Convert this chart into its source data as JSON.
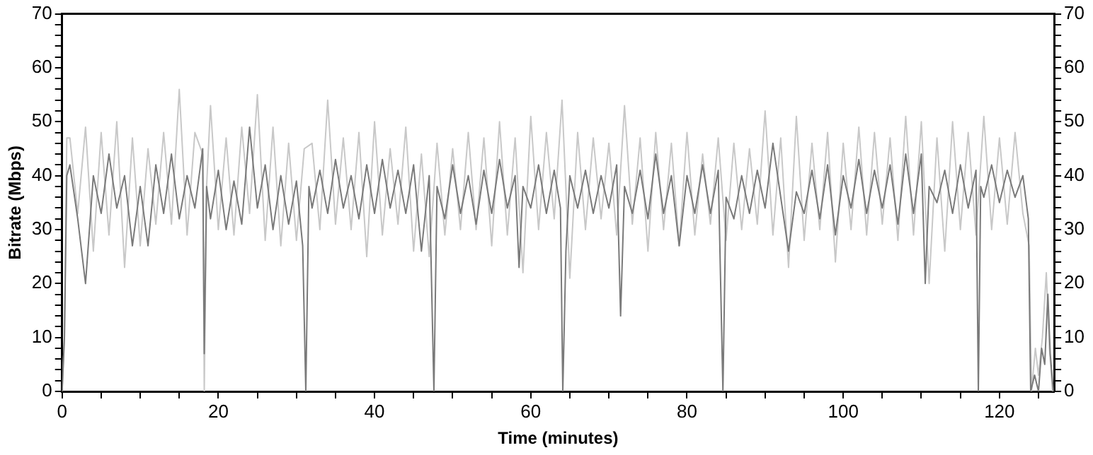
{
  "chart_data": {
    "type": "line",
    "xlabel": "Time (minutes)",
    "ylabel": "Bitrate (Mbps)",
    "xlim": [
      0,
      127
    ],
    "ylim": [
      0,
      70
    ],
    "y2lim": [
      0,
      70
    ],
    "xticks": [
      0,
      {
        "value": 5,
        "label": null
      },
      {
        "value": 10,
        "label": null
      },
      {
        "value": 15,
        "label": null
      },
      20,
      {
        "value": 25,
        "label": null
      },
      {
        "value": 30,
        "label": null
      },
      {
        "value": 35,
        "label": null
      },
      40,
      {
        "value": 45,
        "label": null
      },
      {
        "value": 50,
        "label": null
      },
      {
        "value": 55,
        "label": null
      },
      60,
      {
        "value": 65,
        "label": null
      },
      {
        "value": 70,
        "label": null
      },
      {
        "value": 75,
        "label": null
      },
      80,
      {
        "value": 85,
        "label": null
      },
      {
        "value": 90,
        "label": null
      },
      {
        "value": 95,
        "label": null
      },
      100,
      {
        "value": 105,
        "label": null
      },
      {
        "value": 110,
        "label": null
      },
      {
        "value": 115,
        "label": null
      },
      120,
      {
        "value": 125,
        "label": null
      }
    ],
    "yticks": [
      0,
      {
        "value": 2,
        "label": null
      },
      {
        "value": 4,
        "label": null
      },
      {
        "value": 6,
        "label": null
      },
      {
        "value": 8,
        "label": null
      },
      10,
      {
        "value": 12,
        "label": null
      },
      {
        "value": 14,
        "label": null
      },
      {
        "value": 16,
        "label": null
      },
      {
        "value": 18,
        "label": null
      },
      20,
      {
        "value": 22,
        "label": null
      },
      {
        "value": 24,
        "label": null
      },
      {
        "value": 26,
        "label": null
      },
      {
        "value": 28,
        "label": null
      },
      30,
      {
        "value": 32,
        "label": null
      },
      {
        "value": 34,
        "label": null
      },
      {
        "value": 36,
        "label": null
      },
      {
        "value": 38,
        "label": null
      },
      40,
      {
        "value": 42,
        "label": null
      },
      {
        "value": 44,
        "label": null
      },
      {
        "value": 46,
        "label": null
      },
      {
        "value": 48,
        "label": null
      },
      50,
      {
        "value": 52,
        "label": null
      },
      {
        "value": 54,
        "label": null
      },
      {
        "value": 56,
        "label": null
      },
      {
        "value": 58,
        "label": null
      },
      60,
      {
        "value": 62,
        "label": null
      },
      {
        "value": 64,
        "label": null
      },
      {
        "value": 66,
        "label": null
      },
      {
        "value": 68,
        "label": null
      },
      70
    ],
    "y2ticks": [
      0,
      {
        "value": 2,
        "label": null
      },
      {
        "value": 4,
        "label": null
      },
      {
        "value": 6,
        "label": null
      },
      {
        "value": 8,
        "label": null
      },
      10,
      {
        "value": 12,
        "label": null
      },
      {
        "value": 14,
        "label": null
      },
      {
        "value": 16,
        "label": null
      },
      {
        "value": 18,
        "label": null
      },
      20,
      {
        "value": 22,
        "label": null
      },
      {
        "value": 24,
        "label": null
      },
      {
        "value": 26,
        "label": null
      },
      {
        "value": 28,
        "label": null
      },
      30,
      {
        "value": 32,
        "label": null
      },
      {
        "value": 34,
        "label": null
      },
      {
        "value": 36,
        "label": null
      },
      {
        "value": 38,
        "label": null
      },
      40,
      {
        "value": 42,
        "label": null
      },
      {
        "value": 44,
        "label": null
      },
      {
        "value": 46,
        "label": null
      },
      {
        "value": 48,
        "label": null
      },
      50,
      {
        "value": 52,
        "label": null
      },
      {
        "value": 54,
        "label": null
      },
      {
        "value": 56,
        "label": null
      },
      {
        "value": 58,
        "label": null
      },
      60,
      {
        "value": 62,
        "label": null
      },
      {
        "value": 64,
        "label": null
      },
      {
        "value": 66,
        "label": null
      },
      {
        "value": 68,
        "label": null
      },
      70
    ],
    "grid": false,
    "legend": false,
    "marker": "none",
    "line_style": "solid",
    "series": [
      {
        "color": "#c8c8c8",
        "x": [
          0,
          0.3,
          0.6,
          1,
          2,
          3,
          4,
          5,
          6,
          7,
          8,
          9,
          10,
          11,
          12,
          13,
          14,
          15,
          16,
          17,
          18,
          18.2,
          18.5,
          19,
          20,
          21,
          22,
          23,
          24,
          25,
          26,
          27,
          28,
          29,
          30,
          31,
          32,
          33,
          34,
          35,
          36,
          37,
          38,
          39,
          40,
          41,
          42,
          43,
          44,
          45,
          46,
          47,
          48,
          49,
          50,
          51,
          52,
          53,
          54,
          55,
          56,
          57,
          58,
          59,
          60,
          61,
          62,
          63,
          64,
          65,
          66,
          67,
          68,
          69,
          70,
          71,
          72,
          73,
          74,
          75,
          76,
          77,
          78,
          79,
          80,
          81,
          82,
          83,
          84,
          85,
          86,
          87,
          88,
          89,
          90,
          91,
          92,
          93,
          94,
          95,
          96,
          97,
          98,
          99,
          100,
          101,
          102,
          103,
          104,
          105,
          106,
          107,
          108,
          109,
          110,
          111,
          112,
          113,
          114,
          115,
          116,
          117,
          118,
          119,
          120,
          121,
          122,
          123,
          123.8,
          124.1,
          124.6,
          125,
          125.5,
          126,
          126.4,
          126.8
        ],
        "values": [
          0,
          10,
          47,
          47,
          33,
          49,
          26,
          48,
          29,
          50,
          23,
          47,
          27,
          45,
          31,
          48,
          31,
          56,
          29,
          48,
          44,
          0,
          38,
          53,
          30,
          47,
          29,
          49,
          33,
          55,
          28,
          49,
          27,
          46,
          28,
          45,
          46,
          30,
          54,
          31,
          47,
          30,
          48,
          25,
          50,
          29,
          45,
          31,
          49,
          26,
          44,
          25,
          46,
          29,
          45,
          30,
          48,
          30,
          47,
          27,
          50,
          29,
          47,
          22,
          51,
          30,
          48,
          32,
          54,
          21,
          48,
          30,
          47,
          32,
          46,
          29,
          53,
          31,
          47,
          26,
          48,
          30,
          46,
          27,
          48,
          29,
          44,
          31,
          47,
          28,
          46,
          30,
          45,
          31,
          52,
          29,
          47,
          23,
          51,
          28,
          46,
          30,
          48,
          24,
          46,
          30,
          49,
          29,
          48,
          31,
          47,
          28,
          51,
          29,
          50,
          20,
          47,
          26,
          50,
          30,
          48,
          29,
          51,
          30,
          47,
          31,
          48,
          33,
          27,
          0,
          8,
          3,
          10,
          22,
          8,
          0
        ]
      },
      {
        "color": "#7a7a7a",
        "x": [
          0,
          0.3,
          0.6,
          1,
          2,
          3,
          4,
          5,
          6,
          7,
          8,
          9,
          10,
          11,
          12,
          13,
          14,
          15,
          16,
          17,
          18,
          18.2,
          18.5,
          19,
          20,
          21,
          22,
          23,
          24,
          25,
          26,
          27,
          28,
          29,
          30,
          30.8,
          31.2,
          31.6,
          32,
          33,
          34,
          35,
          36,
          37,
          38,
          39,
          40,
          41,
          42,
          43,
          44,
          45,
          46,
          47,
          47.6,
          48,
          49,
          50,
          51,
          52,
          53,
          54,
          55,
          56,
          57,
          58,
          58.5,
          59,
          60,
          61,
          62,
          63,
          63.8,
          64.1,
          64.5,
          65,
          66,
          67,
          68,
          69,
          70,
          71,
          71.5,
          72,
          73,
          74,
          75,
          76,
          77,
          78,
          79,
          80,
          81,
          82,
          83,
          84,
          84.6,
          85,
          86,
          87,
          88,
          89,
          90,
          91,
          92,
          93,
          94,
          95,
          96,
          97,
          98,
          99,
          100,
          101,
          102,
          103,
          104,
          105,
          106,
          107,
          108,
          109,
          110,
          110.5,
          111,
          112,
          113,
          114,
          115,
          116,
          117,
          117.3,
          117.6,
          118,
          119,
          120,
          121,
          122,
          123,
          123.7,
          124,
          124.5,
          125,
          125.4,
          125.8,
          126.2,
          126.5,
          126.9
        ],
        "values": [
          0,
          10,
          40,
          42,
          32,
          20,
          40,
          33,
          44,
          34,
          40,
          27,
          38,
          27,
          42,
          33,
          44,
          32,
          40,
          34,
          45,
          7,
          38,
          32,
          41,
          30,
          39,
          31,
          49,
          34,
          42,
          30,
          40,
          31,
          39,
          27,
          0,
          38,
          34,
          41,
          33,
          43,
          34,
          40,
          32,
          42,
          33,
          43,
          34,
          41,
          33,
          42,
          26,
          40,
          0,
          38,
          32,
          42,
          33,
          40,
          31,
          41,
          33,
          43,
          34,
          40,
          23,
          38,
          34,
          42,
          33,
          41,
          34,
          0,
          26,
          40,
          34,
          41,
          33,
          40,
          34,
          42,
          14,
          38,
          33,
          41,
          32,
          44,
          33,
          40,
          27,
          40,
          33,
          42,
          33,
          41,
          0,
          36,
          32,
          40,
          33,
          41,
          34,
          46,
          36,
          26,
          37,
          33,
          41,
          32,
          42,
          29,
          40,
          34,
          43,
          33,
          41,
          34,
          42,
          31,
          44,
          33,
          44,
          20,
          38,
          35,
          41,
          33,
          42,
          34,
          41,
          0,
          38,
          36,
          42,
          35,
          41,
          36,
          40,
          32,
          0,
          3,
          0,
          8,
          5,
          18,
          7,
          0
        ]
      }
    ]
  }
}
